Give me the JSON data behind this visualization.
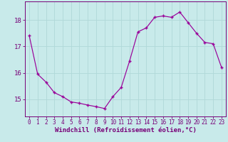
{
  "x": [
    0,
    1,
    2,
    3,
    4,
    5,
    6,
    7,
    8,
    9,
    10,
    11,
    12,
    13,
    14,
    15,
    16,
    17,
    18,
    19,
    20,
    21,
    22,
    23
  ],
  "y": [
    17.4,
    15.95,
    15.65,
    15.25,
    15.1,
    14.9,
    14.85,
    14.78,
    14.72,
    14.65,
    15.1,
    15.45,
    16.45,
    17.55,
    17.7,
    18.1,
    18.15,
    18.1,
    18.3,
    17.9,
    17.5,
    17.15,
    17.1,
    16.2
  ],
  "line_color": "#990099",
  "marker": "+",
  "bg_color": "#c8eaea",
  "grid_color": "#b0d8d8",
  "xlabel": "Windchill (Refroidissement éolien,°C)",
  "ylabel_ticks": [
    15,
    16,
    17,
    18
  ],
  "xlim": [
    -0.5,
    23.5
  ],
  "ylim": [
    14.35,
    18.7
  ],
  "axis_color": "#770077",
  "tick_color": "#770077",
  "label_color": "#770077",
  "font_size_xlabel": 6.5,
  "font_size_ytick": 6.5,
  "font_size_xtick": 5.5
}
